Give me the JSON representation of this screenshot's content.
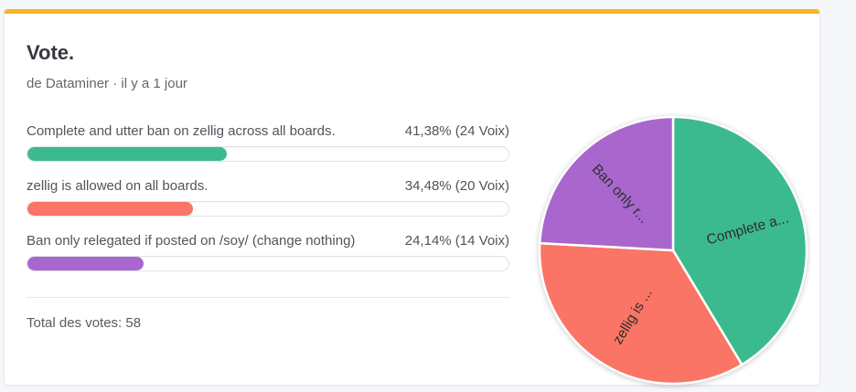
{
  "card": {
    "title": "Vote.",
    "byline": "de Dataminer · il y a 1 jour",
    "accent_color": "#f8b425",
    "total_votes_label": "Total des votes: 58"
  },
  "poll": {
    "options": [
      {
        "label": "Complete and utter ban on zellig across all boards.",
        "result": "41,38% (24 Voix)",
        "percent": 41.38,
        "votes": 24,
        "color": "#3cba8f"
      },
      {
        "label": "zellig is allowed on all boards.",
        "result": "34,48% (20 Voix)",
        "percent": 34.48,
        "votes": 20,
        "color": "#fa7565"
      },
      {
        "label": "Ban only relegated if posted on /soy/ (change nothing)",
        "result": "24,14% (14 Voix)",
        "percent": 24.14,
        "votes": 14,
        "color": "#a967cd"
      }
    ],
    "total_votes": 58
  },
  "chart_data": {
    "type": "pie",
    "labels": [
      "Complete a...",
      "zellig is ...",
      "Ban only r..."
    ],
    "values": [
      41.38,
      34.48,
      24.14
    ],
    "colors": [
      "#3cba8f",
      "#fa7565",
      "#a967cd"
    ],
    "start_angle_cw_from_top_deg": 0,
    "slice_border_color": "#ffffff",
    "legend": "none"
  }
}
